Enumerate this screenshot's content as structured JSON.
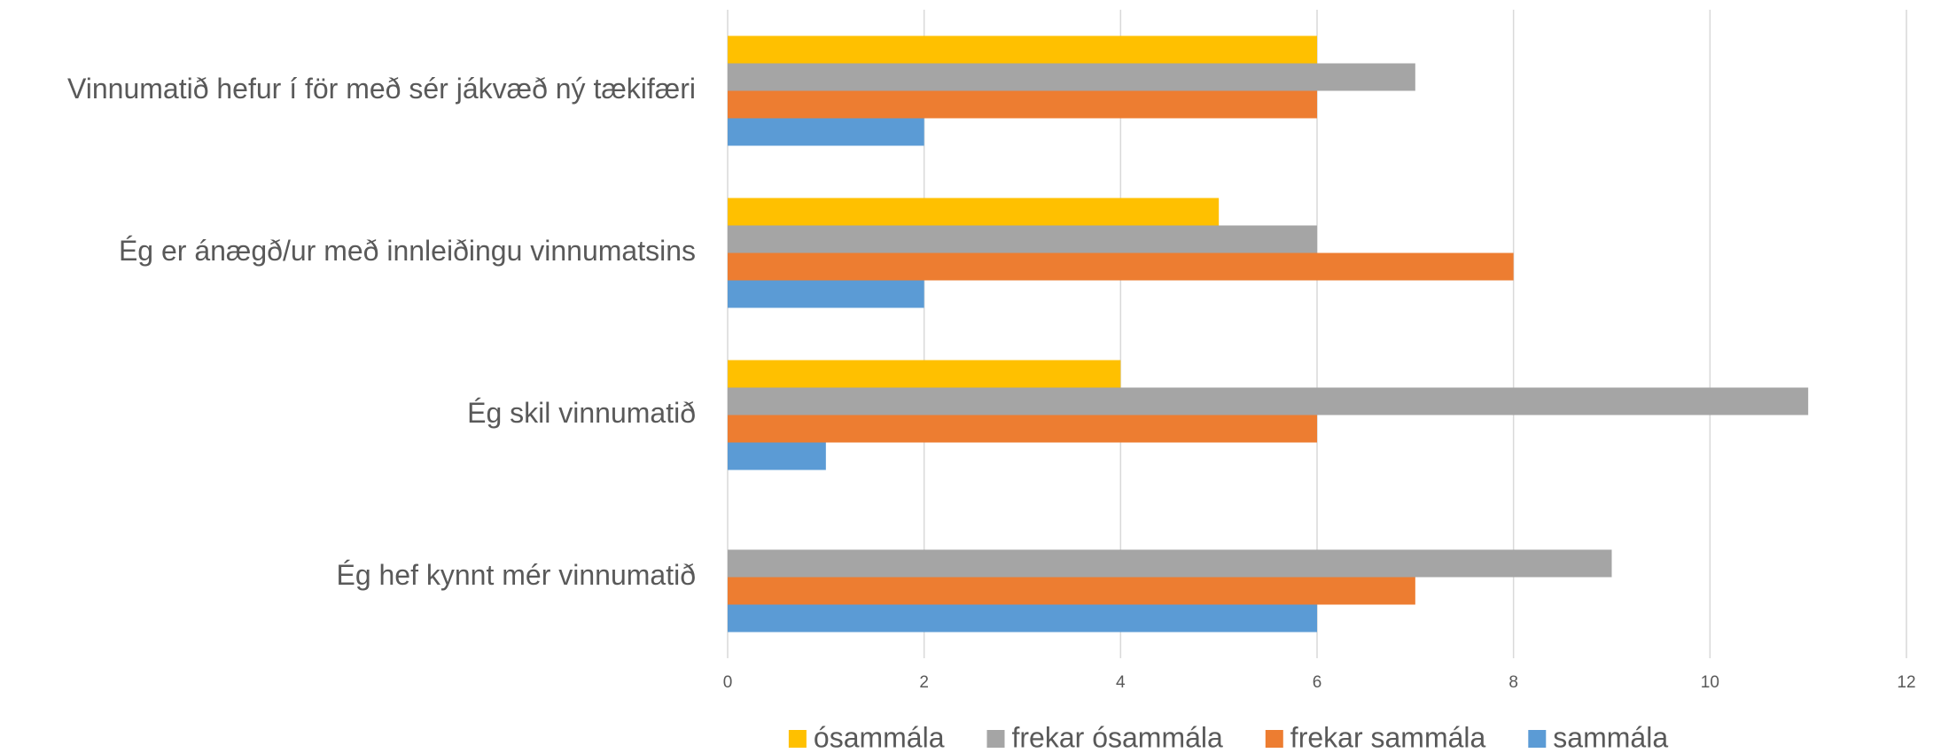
{
  "chart_data": {
    "type": "bar",
    "orientation": "horizontal",
    "categories": [
      "Vinnumatið hefur í för með sér jákvæð ný tækifæri",
      "Ég er ánægð/ur með innleiðingu vinnumatsins",
      "Ég skil vinnumatið",
      "Ég hef kynnt mér vinnumatið"
    ],
    "series": [
      {
        "name": "ósammála",
        "color": "#FFC000",
        "values": [
          6,
          5,
          4,
          0
        ]
      },
      {
        "name": "frekar ósammála",
        "color": "#A5A5A5",
        "values": [
          7,
          6,
          11,
          9
        ]
      },
      {
        "name": "frekar sammála",
        "color": "#ED7D31",
        "values": [
          6,
          8,
          6,
          7
        ]
      },
      {
        "name": "sammála",
        "color": "#5B9BD5",
        "values": [
          2,
          2,
          1,
          6
        ]
      }
    ],
    "xlim": [
      0,
      12
    ],
    "xticks": [
      0,
      2,
      4,
      6,
      8,
      10,
      12
    ],
    "grid": true,
    "legend": "bottom"
  }
}
